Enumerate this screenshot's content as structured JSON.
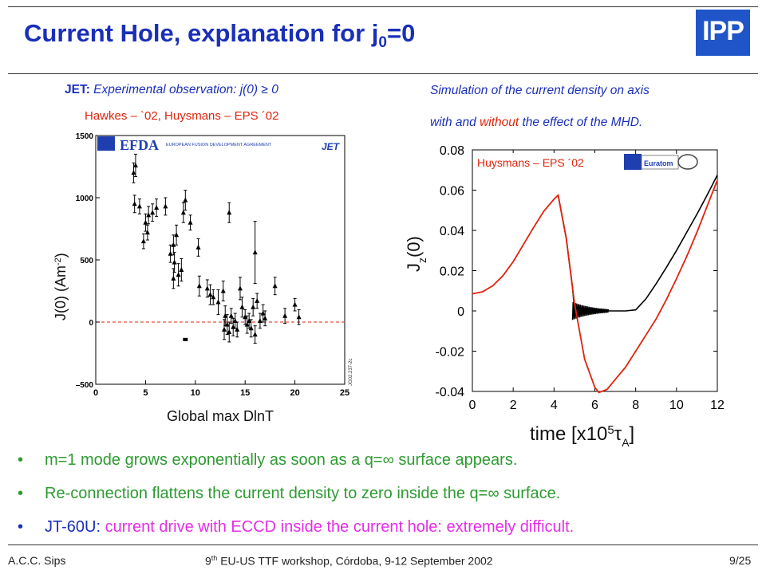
{
  "header": {
    "title_main": "Current Hole, explanation for j",
    "title_sub": "0",
    "title_end": "=0",
    "logo_text": "IPP"
  },
  "left_panel": {
    "caption_bold": "JET:",
    "caption_rest": " Experimental observation: j(0) ≥ 0",
    "authors": "Hawkes – `02,  Huysmans – EPS ´02",
    "banner_text": "EFDA",
    "banner_sub": "EUROPEAN FUSION DEVELOPMENT AGREEMENT",
    "banner_jet": "JET",
    "code_label": "JG02.237-2c"
  },
  "right_panel": {
    "caption_line1": "Simulation of the current density on axis",
    "caption_with": "with ",
    "caption_and": "and",
    "caption_space": " ",
    "caption_without": "without",
    "caption_rest": " the effect of the MHD.",
    "authors": "Huysmans – EPS ´02",
    "euratom": "Euratom"
  },
  "bullets": [
    {
      "text": "m=1 mode grows exponentially as soon as a q=∞ surface appears."
    },
    {
      "text": "Re-connection flattens the current density to zero inside the q=∞ surface."
    },
    {
      "prefix": "JT-60U:",
      "text": " current drive with ECCD inside the current hole: extremely difficult."
    }
  ],
  "footer": {
    "author": "A.C.C. Sips",
    "event_pre": "9",
    "event_sup": "th",
    "event_post": " EU-US TTF workshop, Córdoba, 9-12 September 2002",
    "page": "9/25"
  },
  "colors": {
    "blue": "#1a2fb8",
    "red": "#e0230c",
    "green": "#2e9a32",
    "magenta": "#e42ee6",
    "logo": "#1f55c8"
  },
  "chart_data": [
    {
      "type": "scatter",
      "title": "",
      "xlabel": "Global max DlnT",
      "ylabel": "J(0) (Am-2)",
      "xlim": [
        0,
        25
      ],
      "ylim": [
        -500,
        1500
      ],
      "xticks": [
        "0",
        "5",
        "10",
        "15",
        "20",
        "25"
      ],
      "yticks": [
        "–500",
        "0",
        "500",
        "1000",
        "1500"
      ],
      "reference_line": 0,
      "series": [
        {
          "points": [
            [
              3.8,
              1200,
              80
            ],
            [
              4.0,
              1260,
              90
            ],
            [
              3.9,
              950,
              70
            ],
            [
              4.4,
              930,
              60
            ],
            [
              4.8,
              650,
              60
            ],
            [
              5.0,
              800,
              70
            ],
            [
              5.3,
              860,
              70
            ],
            [
              5.2,
              720,
              60
            ],
            [
              5.7,
              880,
              70
            ],
            [
              6.1,
              920,
              70
            ],
            [
              7.0,
              930,
              70
            ],
            [
              7.5,
              550,
              70
            ],
            [
              7.8,
              620,
              80
            ],
            [
              7.9,
              480,
              80
            ],
            [
              7.8,
              350,
              80
            ],
            [
              8.1,
              700,
              80
            ],
            [
              8.3,
              380,
              90
            ],
            [
              8.6,
              420,
              90
            ],
            [
              8.8,
              880,
              80
            ],
            [
              9.0,
              980,
              80
            ],
            [
              9.5,
              800,
              60
            ],
            [
              10.3,
              600,
              70
            ],
            [
              10.4,
              290,
              80
            ],
            [
              11.2,
              270,
              70
            ],
            [
              11.5,
              220,
              80
            ],
            [
              11.8,
              200,
              60
            ],
            [
              12.3,
              160,
              100
            ],
            [
              12.8,
              250,
              80
            ],
            [
              13.0,
              50,
              80
            ],
            [
              12.9,
              -60,
              80
            ],
            [
              13.2,
              -20,
              80
            ],
            [
              13.4,
              -80,
              80
            ],
            [
              13.4,
              880,
              80
            ],
            [
              13.6,
              50,
              60
            ],
            [
              13.8,
              -40,
              70
            ],
            [
              14.0,
              10,
              60
            ],
            [
              14.2,
              -60,
              60
            ],
            [
              14.5,
              270,
              90
            ],
            [
              14.7,
              120,
              80
            ],
            [
              15.0,
              40,
              60
            ],
            [
              15.2,
              -20,
              70
            ],
            [
              15.4,
              10,
              60
            ],
            [
              15.6,
              -50,
              70
            ],
            [
              15.8,
              120,
              70
            ],
            [
              16.0,
              -100,
              70
            ],
            [
              16.2,
              170,
              60
            ],
            [
              16.0,
              560,
              250
            ],
            [
              16.5,
              10,
              60
            ],
            [
              16.8,
              70,
              70
            ],
            [
              17.0,
              30,
              60
            ],
            [
              18.0,
              290,
              70
            ],
            [
              19.0,
              50,
              60
            ],
            [
              20.0,
              140,
              50
            ],
            [
              20.4,
              40,
              60
            ],
            [
              9.0,
              -140,
              0
            ]
          ]
        }
      ]
    },
    {
      "type": "line",
      "title": "",
      "xlabel": "time [x10^5 τA]",
      "ylabel": "Jz(0)",
      "xlim": [
        0,
        12
      ],
      "ylim": [
        -0.04,
        0.08
      ],
      "xticks": [
        "0",
        "2",
        "4",
        "6",
        "8",
        "10",
        "12"
      ],
      "yticks": [
        "-0.04",
        "-0.02",
        "0",
        "0.02",
        "0.04",
        "0.06",
        "0.08"
      ],
      "series": [
        {
          "color": "#e0230c",
          "x": [
            0,
            0.5,
            1,
            1.5,
            2,
            2.5,
            3,
            3.5,
            4,
            4.2,
            4.6,
            5,
            5.5,
            6,
            6.2,
            6.6,
            7,
            7.5,
            8,
            8.5,
            9,
            9.5,
            10,
            10.5,
            11,
            11.5,
            12
          ],
          "y": [
            0.0085,
            0.0095,
            0.0125,
            0.0175,
            0.0245,
            0.033,
            0.0415,
            0.0495,
            0.0555,
            0.0575,
            0.036,
            0.004,
            -0.024,
            -0.038,
            -0.0405,
            -0.039,
            -0.034,
            -0.028,
            -0.02,
            -0.012,
            -0.004,
            0.0055,
            0.016,
            0.027,
            0.039,
            0.052,
            0.065
          ]
        },
        {
          "color": "#000000",
          "x": [
            4.2,
            4.6,
            4.9,
            5.0,
            5.5,
            6,
            6.5,
            7,
            7.5,
            8.0,
            8.5,
            9,
            9.5,
            10,
            10.5,
            11,
            11.5,
            12
          ],
          "y": [
            0.0575,
            0.036,
            0.012,
            0.001,
            0.0005,
            0.0,
            0.0,
            0.0,
            0.0,
            0.0005,
            0.006,
            0.0135,
            0.0215,
            0.03,
            0.039,
            0.048,
            0.0575,
            0.0675
          ]
        }
      ]
    }
  ]
}
